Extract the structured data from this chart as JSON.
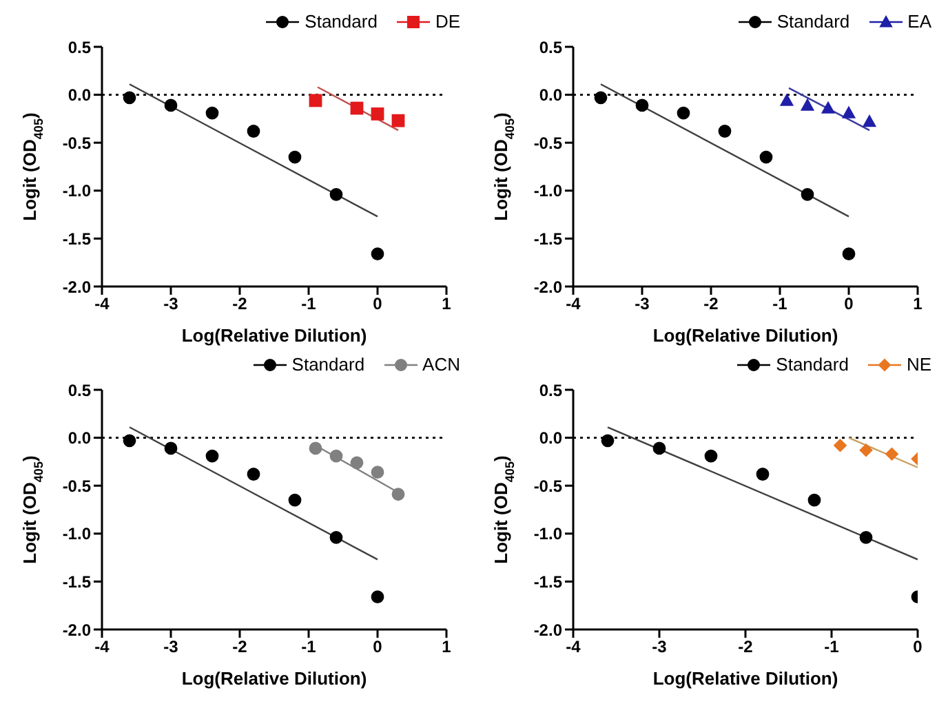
{
  "chart_data": [
    {
      "type": "scatter",
      "xlabel": "Log(Relative Dilution)",
      "ylabel": "Logit (OD$_{405}$)",
      "xlim": [
        -4,
        1
      ],
      "xticks": [
        -4,
        -3,
        -2,
        -1,
        0,
        1
      ],
      "ylim": [
        -2,
        0.5
      ],
      "yticks": [
        {
          "value": -2,
          "label": "-2.0"
        },
        -1.5,
        {
          "value": -1,
          "label": "-1.0"
        },
        -0.5,
        {
          "value": 0,
          "label": "0.0"
        },
        0.5
      ],
      "legend": "top right",
      "ref_lines": [
        {
          "axis": "y",
          "value": 0,
          "line_style": "dotted",
          "color": "#000000"
        }
      ],
      "series": [
        {
          "name": "Standard",
          "color": "#000000",
          "marker": "circle",
          "x": [
            -3.6,
            -3.0,
            -2.4,
            -1.8,
            -1.2,
            -0.6,
            0.0
          ],
          "values": [
            -0.03,
            -0.11,
            -0.19,
            -0.38,
            -0.65,
            -1.04,
            -1.66
          ]
        },
        {
          "name": "DE",
          "color": "#e31a1c",
          "marker": "square",
          "x": [
            -0.9,
            -0.3,
            0.0,
            0.3
          ],
          "values": [
            -0.06,
            -0.14,
            -0.2,
            -0.27
          ]
        },
        {
          "type": "line",
          "color": "#404040",
          "marker": "none",
          "x": [
            -3.6,
            0.0
          ],
          "values": [
            0.11,
            -1.27
          ]
        },
        {
          "type": "line",
          "color": "#c0504d",
          "marker": "none",
          "x": [
            -0.87,
            0.3
          ],
          "values": [
            0.08,
            -0.37
          ]
        }
      ]
    },
    {
      "type": "scatter",
      "xlabel": "Log(Relative Dilution)",
      "ylabel": "Logit (OD$_{405}$)",
      "xlim": [
        -4,
        1
      ],
      "xticks": [
        -4,
        -3,
        -2,
        -1,
        0,
        1
      ],
      "ylim": [
        -2,
        0.5
      ],
      "yticks": [
        {
          "value": -2,
          "label": "-2.0"
        },
        -1.5,
        {
          "value": -1,
          "label": "-1.0"
        },
        -0.5,
        {
          "value": 0,
          "label": "0.0"
        },
        0.5
      ],
      "legend": "top right",
      "ref_lines": [
        {
          "axis": "y",
          "value": 0,
          "line_style": "dotted",
          "color": "#000000"
        }
      ],
      "series": [
        {
          "name": "Standard",
          "color": "#000000",
          "marker": "circle",
          "x": [
            -3.6,
            -3.0,
            -2.4,
            -1.8,
            -1.2,
            -0.6,
            0.0
          ],
          "values": [
            -0.03,
            -0.11,
            -0.19,
            -0.38,
            -0.65,
            -1.04,
            -1.66
          ]
        },
        {
          "name": "EA",
          "color": "#1f1fa8",
          "marker": "triangle",
          "x": [
            -0.9,
            -0.6,
            -0.3,
            0.0,
            0.3
          ],
          "values": [
            -0.06,
            -0.11,
            -0.14,
            -0.19,
            -0.28
          ]
        },
        {
          "type": "line",
          "color": "#404040",
          "marker": "none",
          "x": [
            -3.6,
            0.0
          ],
          "values": [
            0.11,
            -1.27
          ]
        },
        {
          "type": "line",
          "color": "#3a3aa0",
          "marker": "none",
          "x": [
            -0.87,
            0.3
          ],
          "values": [
            0.07,
            -0.37
          ]
        }
      ]
    },
    {
      "type": "scatter",
      "xlabel": "Log(Relative Dilution)",
      "ylabel": "Logit (OD$_{405}$)",
      "xlim": [
        -4,
        1
      ],
      "xticks": [
        -4,
        -3,
        -2,
        -1,
        0,
        1
      ],
      "ylim": [
        -2,
        0.5
      ],
      "yticks": [
        {
          "value": -2,
          "label": "-2.0"
        },
        -1.5,
        {
          "value": -1,
          "label": "-1.0"
        },
        -0.5,
        {
          "value": 0,
          "label": "0.0"
        },
        0.5
      ],
      "legend": "top right",
      "ref_lines": [
        {
          "axis": "y",
          "value": 0,
          "line_style": "dotted",
          "color": "#000000"
        }
      ],
      "series": [
        {
          "name": "Standard",
          "color": "#000000",
          "marker": "circle",
          "x": [
            -3.6,
            -3.0,
            -2.4,
            -1.8,
            -1.2,
            -0.6,
            0.0
          ],
          "values": [
            -0.03,
            -0.11,
            -0.19,
            -0.38,
            -0.65,
            -1.04,
            -1.66
          ]
        },
        {
          "name": "ACN",
          "color": "#808080",
          "marker": "circle",
          "x": [
            -0.9,
            -0.6,
            -0.3,
            0.0,
            0.3
          ],
          "values": [
            -0.11,
            -0.19,
            -0.26,
            -0.36,
            -0.59
          ]
        },
        {
          "type": "line",
          "color": "#404040",
          "marker": "none",
          "x": [
            -3.6,
            0.0
          ],
          "values": [
            0.11,
            -1.27
          ]
        },
        {
          "type": "line",
          "color": "#808080",
          "marker": "none",
          "x": [
            -0.9,
            0.3
          ],
          "values": [
            -0.08,
            -0.57
          ]
        }
      ]
    },
    {
      "type": "scatter",
      "xlabel": "Log(Relative Dilution)",
      "ylabel": "Logit (OD$_{405}$)",
      "xlim": [
        -4,
        0
      ],
      "xticks": [
        -4,
        -3,
        -2,
        -1,
        0
      ],
      "ylim": [
        -2,
        0.5
      ],
      "yticks": [
        {
          "value": -2,
          "label": "-2.0"
        },
        -1.5,
        {
          "value": -1,
          "label": "-1.0"
        },
        -0.5,
        {
          "value": 0,
          "label": "0.0"
        },
        0.5
      ],
      "legend": "top right",
      "ref_lines": [
        {
          "axis": "y",
          "value": 0,
          "line_style": "dotted",
          "color": "#000000"
        }
      ],
      "series": [
        {
          "name": "Standard",
          "color": "#000000",
          "marker": "circle",
          "x": [
            -3.6,
            -3.0,
            -2.4,
            -1.8,
            -1.2,
            -0.6,
            0.0
          ],
          "values": [
            -0.03,
            -0.11,
            -0.19,
            -0.38,
            -0.65,
            -1.04,
            -1.66
          ]
        },
        {
          "name": "NE",
          "color": "#e87722",
          "marker": "diamond",
          "x": [
            -0.9,
            -0.6,
            -0.3,
            0.0
          ],
          "values": [
            -0.08,
            -0.13,
            -0.17,
            -0.22
          ]
        },
        {
          "type": "line",
          "color": "#404040",
          "marker": "none",
          "x": [
            -3.6,
            0.0
          ],
          "values": [
            0.11,
            -1.27
          ]
        },
        {
          "type": "line",
          "color": "#c8a060",
          "marker": "none",
          "x": [
            -0.8,
            0.0
          ],
          "values": [
            0.0,
            -0.31
          ]
        }
      ]
    }
  ]
}
